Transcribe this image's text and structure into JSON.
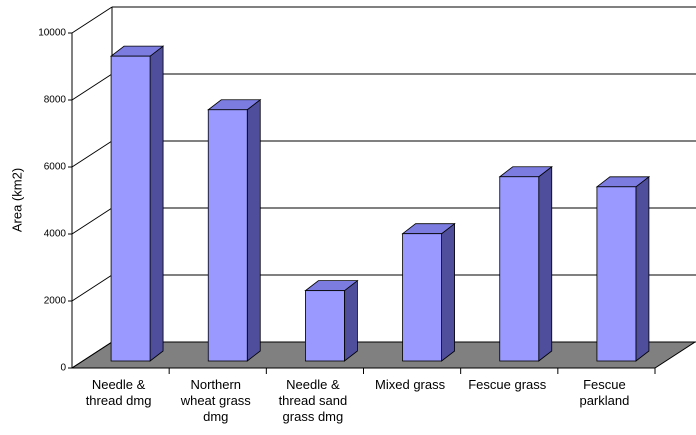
{
  "chart_data": {
    "type": "bar3d",
    "y_label": "Area (km2)",
    "categories": [
      "Needle & thread dmg",
      "Northern wheat grass dmg",
      "Needle & thread sand grass dmg",
      "Mixed grass",
      "Fescue grass",
      "Fescue parkland"
    ],
    "values": [
      9100,
      7500,
      2100,
      3800,
      5500,
      5200
    ],
    "color": "#9999ff",
    "side_color": "#4e4e9c",
    "top_color": "#7b7be0",
    "floor_color": "#808080",
    "ylim": [
      0,
      10000
    ],
    "yticks": [
      0,
      2000,
      4000,
      6000,
      8000,
      10000
    ],
    "grid": true
  }
}
